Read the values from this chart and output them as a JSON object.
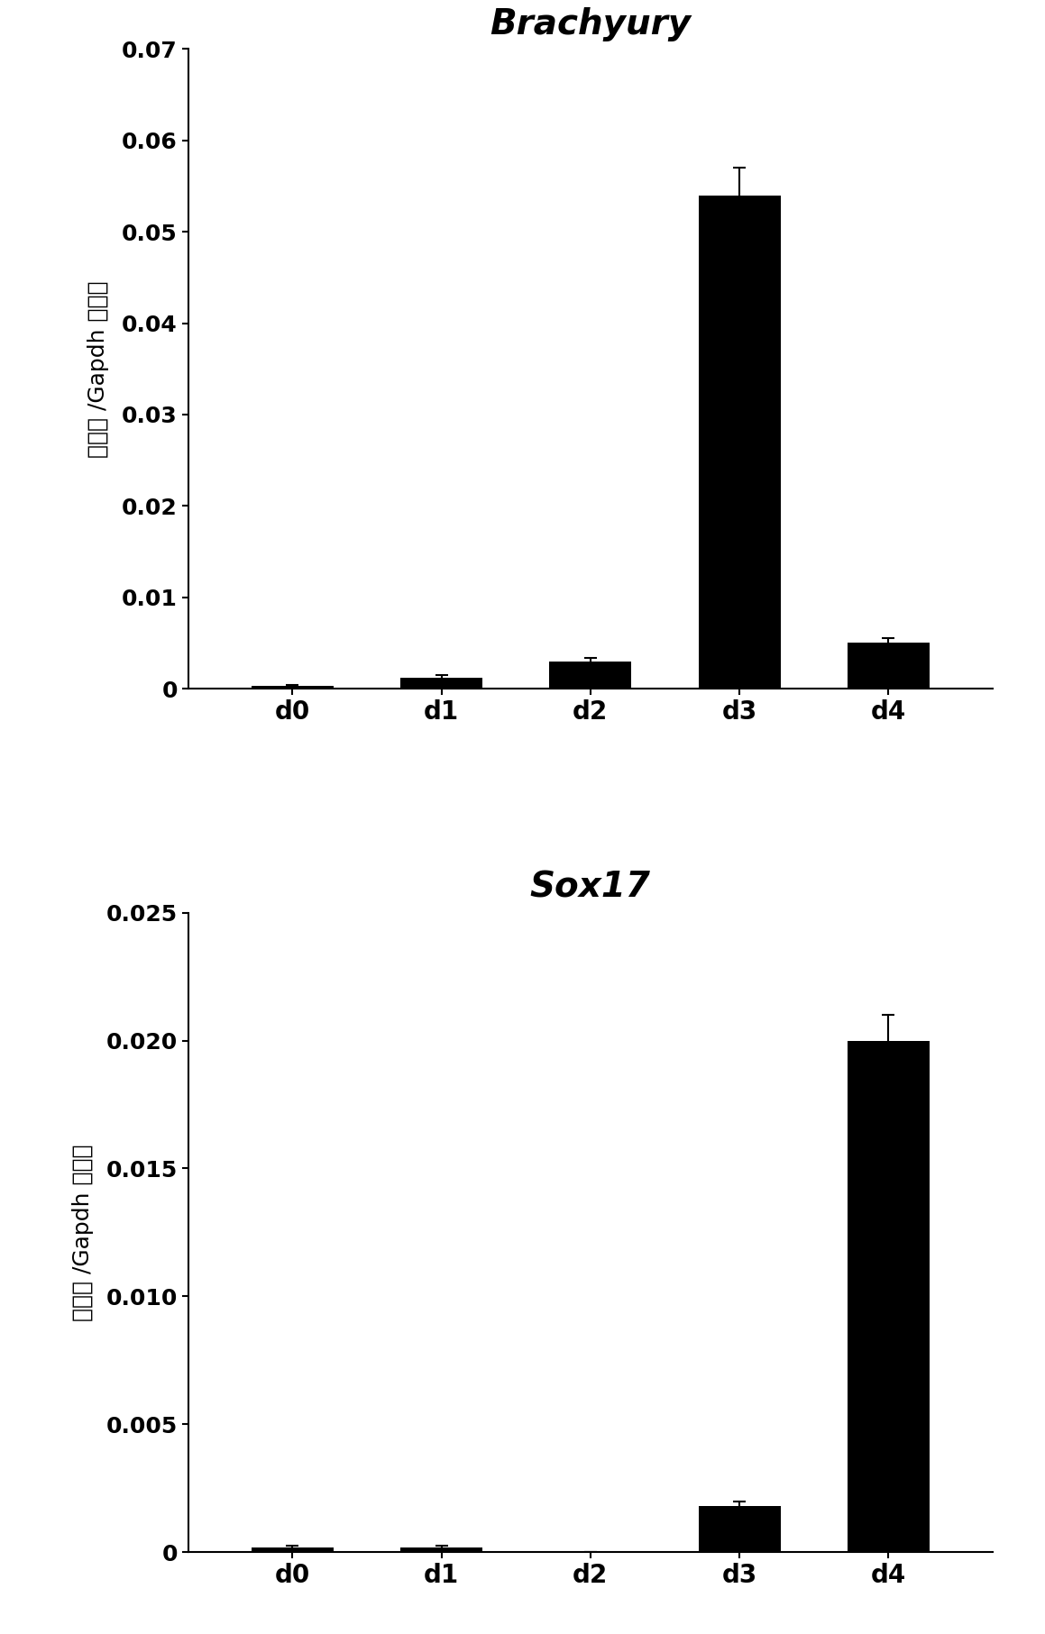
{
  "chart1": {
    "title": "Brachyury",
    "categories": [
      "d0",
      "d1",
      "d2",
      "d3",
      "d4"
    ],
    "values": [
      0.0003,
      0.0012,
      0.003,
      0.054,
      0.005
    ],
    "errors": [
      0.0001,
      0.0003,
      0.0004,
      0.003,
      0.0005
    ],
    "ylim": [
      0,
      0.07
    ],
    "yticks": [
      0,
      0.01,
      0.02,
      0.03,
      0.04,
      0.05,
      0.06,
      0.07
    ],
    "ytick_labels": [
      "0",
      "0.01",
      "0.02",
      "0.03",
      "0.04",
      "0.05",
      "0.06",
      "0.07"
    ],
    "ylabel": "拷贝数 /Gapdh 拷贝数"
  },
  "chart2": {
    "title": "Sox17",
    "categories": [
      "d0",
      "d1",
      "d2",
      "d3",
      "d4"
    ],
    "values": [
      0.0002,
      0.0002,
      0.0,
      0.0018,
      0.02
    ],
    "errors": [
      5e-05,
      5e-05,
      0.0,
      0.0002,
      0.001
    ],
    "ylim": [
      0,
      0.025
    ],
    "yticks": [
      0,
      0.005,
      0.01,
      0.015,
      0.02,
      0.025
    ],
    "ytick_labels": [
      "0",
      "0.005",
      "0.010",
      "0.015",
      "0.020",
      "0.025"
    ],
    "ylabel": "拷贝数 /Gapdh 拷贝数"
  },
  "bar_color": "#000000",
  "bar_width": 0.55,
  "background_color": "#ffffff",
  "title_fontsize": 28,
  "tick_fontsize": 18,
  "xlabel_fontsize": 20,
  "ylabel_fontsize": 18
}
